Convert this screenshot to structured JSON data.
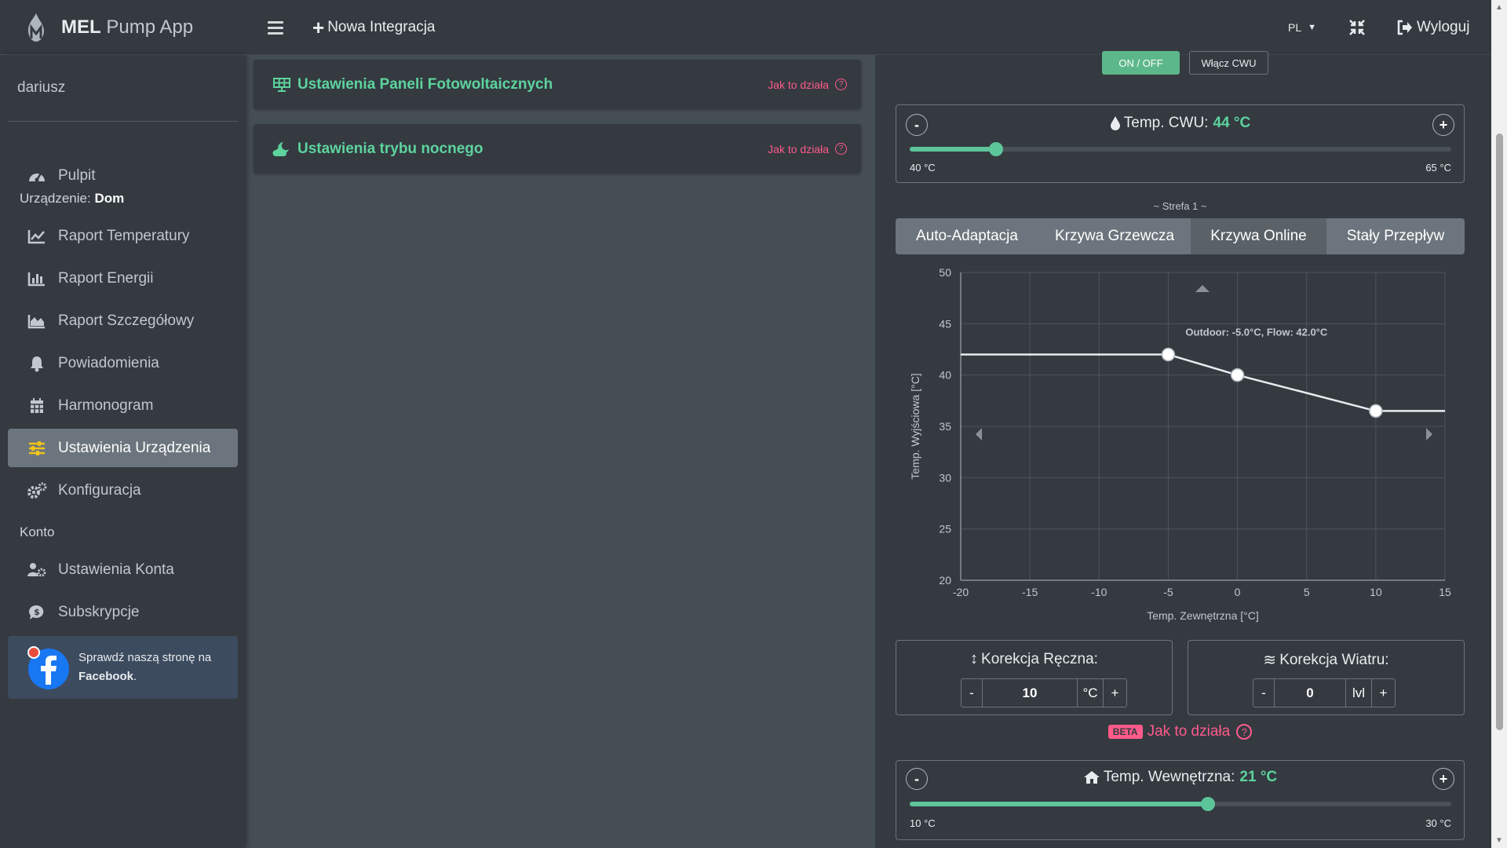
{
  "header": {
    "brand_main": "MEL",
    "brand_sub": "Pump App",
    "new_integration": "Nowa Integracja",
    "language": "PL",
    "logout": "Wyloguj"
  },
  "sidebar": {
    "username": "dariusz",
    "items": [
      {
        "label": "Pulpit",
        "icon": "tachometer-icon"
      },
      {
        "label": "Raport Temperatury",
        "icon": "line-chart-icon"
      },
      {
        "label": "Raport Energii",
        "icon": "bar-chart-icon"
      },
      {
        "label": "Raport Szczegółowy",
        "icon": "area-chart-icon"
      },
      {
        "label": "Powiadomienia",
        "icon": "bell-icon"
      },
      {
        "label": "Harmonogram",
        "icon": "calendar-icon"
      },
      {
        "label": "Ustawienia Urządzenia",
        "icon": "sliders-icon"
      },
      {
        "label": "Konfiguracja",
        "icon": "gears-icon"
      },
      {
        "label": "Ustawienia Konta",
        "icon": "users-gear-icon"
      },
      {
        "label": "Subskrypcje",
        "icon": "dollar-chat-icon"
      }
    ],
    "device_prefix": "Urządzenie:",
    "device_name": "Dom",
    "account_header": "Konto",
    "facebook_line1": "Sprawdź naszą stronę na",
    "facebook_line2": "Facebook",
    "facebook_dot": "."
  },
  "cards": [
    {
      "title": "Ustawienia Paneli Fotowoltaicznych",
      "help": "Jak to działa"
    },
    {
      "title": "Ustawienia trybu nocnego",
      "help": "Jak to działa"
    }
  ],
  "dhw": {
    "on_off": "ON / OFF",
    "enable": "Włącz CWU",
    "title": "Temp. CWU:",
    "value": "44 °C",
    "min_label": "40 °C",
    "max_label": "65 °C",
    "min": 40,
    "max": 65,
    "current": 44
  },
  "zone": {
    "label": "~ Strefa 1 ~",
    "tabs": [
      "Auto-Adaptacja",
      "Krzywa Grzewcza",
      "Krzywa Online",
      "Stały Przepływ"
    ]
  },
  "chart_data": {
    "type": "line",
    "xlabel": "Temp. Zewnętrzna [°C]",
    "ylabel": "Temp. Wyjściowa [°C]",
    "xlim": [
      -20,
      15
    ],
    "ylim": [
      20,
      50
    ],
    "x_ticks": [
      "-20",
      "-15",
      "-10",
      "-5",
      "0",
      "5",
      "10",
      "15"
    ],
    "y_ticks": [
      "50",
      "45",
      "40",
      "35",
      "30",
      "25",
      "20"
    ],
    "grid": true,
    "points": [
      {
        "x": -20,
        "y": 42
      },
      {
        "x": -5,
        "y": 42
      },
      {
        "x": 0,
        "y": 40
      },
      {
        "x": 10,
        "y": 36.5
      },
      {
        "x": 15,
        "y": 36.5
      }
    ],
    "handles": [
      {
        "x": -5,
        "y": 42
      },
      {
        "x": 0,
        "y": 40
      },
      {
        "x": 10,
        "y": 36.5
      }
    ],
    "tooltip": "Outdoor: -5.0°C, Flow: 42.0°C"
  },
  "manual_correction": {
    "title": "Korekcja Ręczna:",
    "minus": "-",
    "value": "10",
    "unit": "°C",
    "plus": "+"
  },
  "wind_correction": {
    "title": "Korekcja Wiatru:",
    "minus": "-",
    "value": "0",
    "unit": "lvl",
    "plus": "+"
  },
  "beta_row": {
    "badge": "BETA",
    "text": "Jak to działa"
  },
  "indoor": {
    "title": "Temp. Wewnętrzna:",
    "value": "21 °C",
    "min_label": "10 °C",
    "max_label": "30 °C",
    "min": 10,
    "max": 30,
    "current": 21
  },
  "buttons": {
    "minus": "-",
    "plus": "+"
  }
}
